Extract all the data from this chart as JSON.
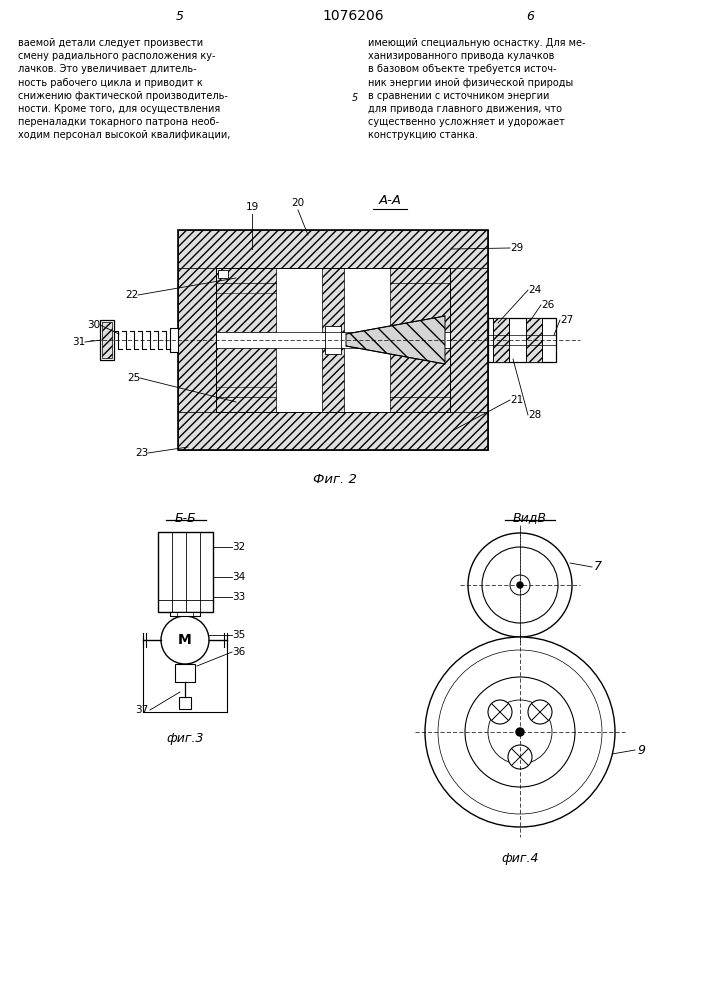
{
  "background_color": "#ffffff",
  "page_width": 7.07,
  "page_height": 10.0,
  "text_color": "#000000",
  "header_number": "1076206",
  "left_text": [
    "ваемой детали следует произвести",
    "смену радиального расположения ку-",
    "лачков. Это увеличивает длитель-",
    "ность рабочего цикла и приводит к",
    "снижению фактической производитель-",
    "ности. Кроме того, для осуществления",
    "переналадки токарного патрона необ-",
    "ходим персонал высокой квалификации,"
  ],
  "right_text": [
    "имеющий специальную оснастку. Для ме-",
    "ханизированного привода кулачков",
    "в базовом объекте требуется источ-",
    "ник энергии иной физической природы",
    "в сравнении с источником энергии",
    "для привода главного движения, что",
    "существенно усложняет и удорожает",
    "конструкцию станка."
  ]
}
